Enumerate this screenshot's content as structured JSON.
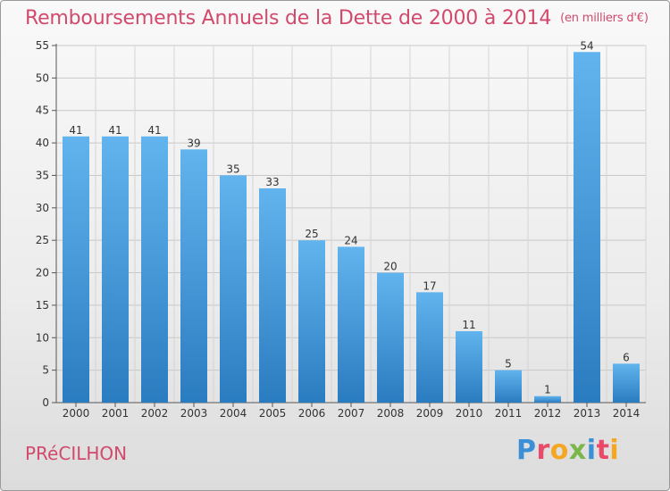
{
  "title": "Remboursements Annuels de la Dette de 2000 à 2014",
  "unit": "(en milliers d'€)",
  "commune": "PRéCILHON",
  "logo": {
    "p": "P",
    "r": "r",
    "o": "o",
    "x": "x",
    "i1": "i",
    "t": "t",
    "i2": "i"
  },
  "colors": {
    "title": "#d14a6c",
    "bar_top": "#62b4ee",
    "bar_bottom": "#2a7cc0"
  },
  "chart_data": {
    "type": "bar",
    "title": "Remboursements Annuels de la Dette de 2000 à 2014",
    "xlabel": "",
    "ylabel": "",
    "ylim": [
      0,
      55
    ],
    "yticks": [
      0,
      5,
      10,
      15,
      20,
      25,
      30,
      35,
      40,
      45,
      50,
      55
    ],
    "grid": true,
    "categories": [
      "2000",
      "2001",
      "2002",
      "2003",
      "2004",
      "2005",
      "2006",
      "2007",
      "2008",
      "2009",
      "2010",
      "2011",
      "2012",
      "2013",
      "2014"
    ],
    "values": [
      41,
      41,
      41,
      39,
      35,
      33,
      25,
      24,
      20,
      17,
      11,
      5,
      1,
      54,
      6
    ]
  }
}
